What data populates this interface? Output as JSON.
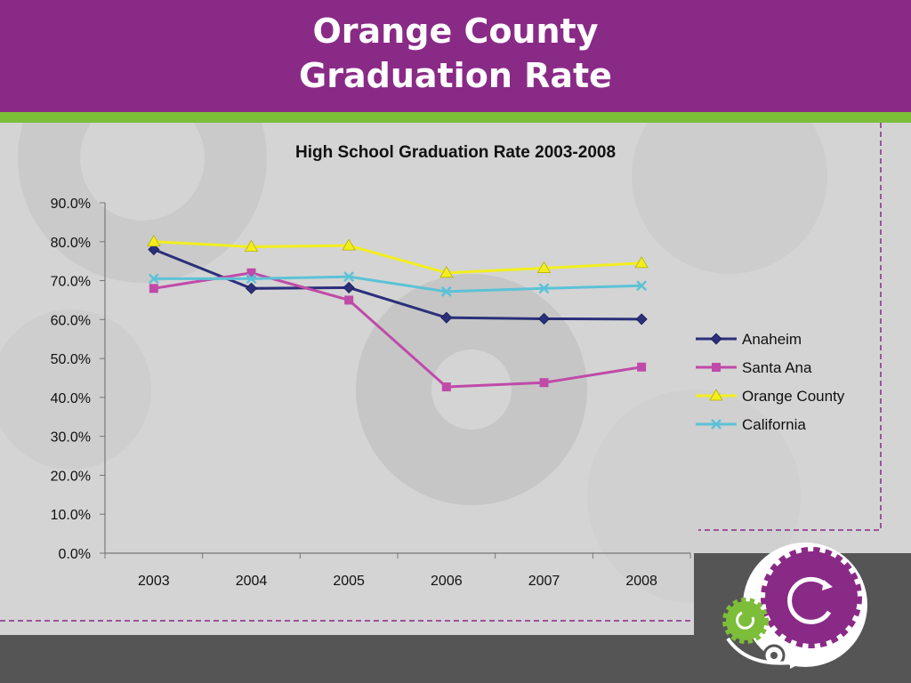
{
  "slide": {
    "title_line1": "Orange County",
    "title_line2": "Graduation Rate"
  },
  "colors": {
    "header": "#8a2a87",
    "accent_green": "#7cbd3a",
    "footer": "#555555"
  },
  "chart_data": {
    "type": "line",
    "title": "High School Graduation Rate 2003-2008",
    "categories": [
      "2003",
      "2004",
      "2005",
      "2006",
      "2007",
      "2008"
    ],
    "y_ticks": [
      "0.0%",
      "10.0%",
      "20.0%",
      "30.0%",
      "40.0%",
      "50.0%",
      "60.0%",
      "70.0%",
      "80.0%",
      "90.0%"
    ],
    "ylim": [
      0,
      90
    ],
    "grid": false,
    "legend_position": "right",
    "series": [
      {
        "name": "Anaheim",
        "color": "#2b2f7a",
        "marker": "diamond",
        "values": [
          78.0,
          68.0,
          68.2,
          60.5,
          60.2,
          60.1
        ]
      },
      {
        "name": "Santa Ana",
        "color": "#c04aa8",
        "marker": "square",
        "values": [
          68.0,
          72.0,
          65.0,
          42.7,
          43.8,
          47.8
        ]
      },
      {
        "name": "Orange County",
        "color": "#f2ee1e",
        "marker": "triangle",
        "values": [
          80.0,
          78.7,
          79.0,
          72.0,
          73.2,
          74.5
        ]
      },
      {
        "name": "California",
        "color": "#5cc2d6",
        "marker": "x",
        "values": [
          70.5,
          70.5,
          71.0,
          67.2,
          68.0,
          68.7
        ]
      }
    ]
  }
}
